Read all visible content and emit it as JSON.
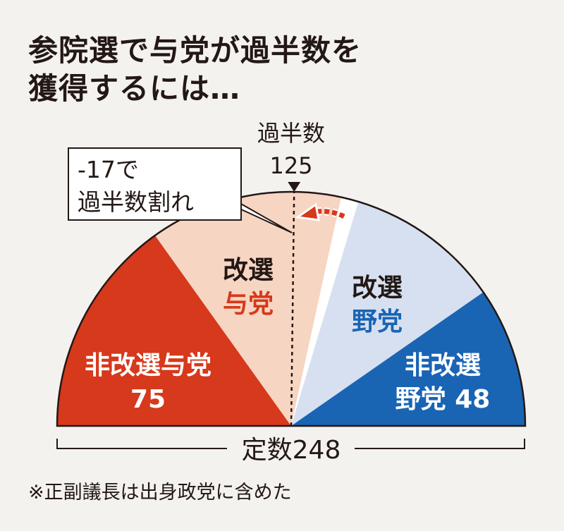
{
  "title_line1": "参院選で与党が過半数を",
  "title_line2": "獲得するには…",
  "chart_data": {
    "type": "pie",
    "shape": "semicircle",
    "total": 248,
    "total_label": "定数248",
    "majority_label": "過半数",
    "majority_value": "125",
    "callout_line1": "-17で",
    "callout_line2": "過半数割れ",
    "segments": [
      {
        "name": "非改選与党",
        "label_lines": [
          "非改選与党",
          "75"
        ],
        "value": 75,
        "color": "#d6391b",
        "text_color": "#ffffff"
      },
      {
        "name": "改選与党",
        "label_lines": [
          "改選",
          "与党"
        ],
        "value": 66,
        "color": "#f7d5c3",
        "text_color": "#231815",
        "accent_color": "#d6391b"
      },
      {
        "name": "",
        "label_lines": [],
        "value": 6,
        "color": "#ffffff"
      },
      {
        "name": "改選野党",
        "label_lines": [
          "改選",
          "野党"
        ],
        "value": 53,
        "color": "#d6e0f0",
        "text_color": "#231815",
        "accent_color": "#1a64b4"
      },
      {
        "name": "非改選野党",
        "label_lines": [
          "非改選",
          "野党 48"
        ],
        "value": 48,
        "color": "#1a64b4",
        "text_color": "#ffffff"
      }
    ]
  },
  "footnote": "※正副議長は出身政党に含めた"
}
